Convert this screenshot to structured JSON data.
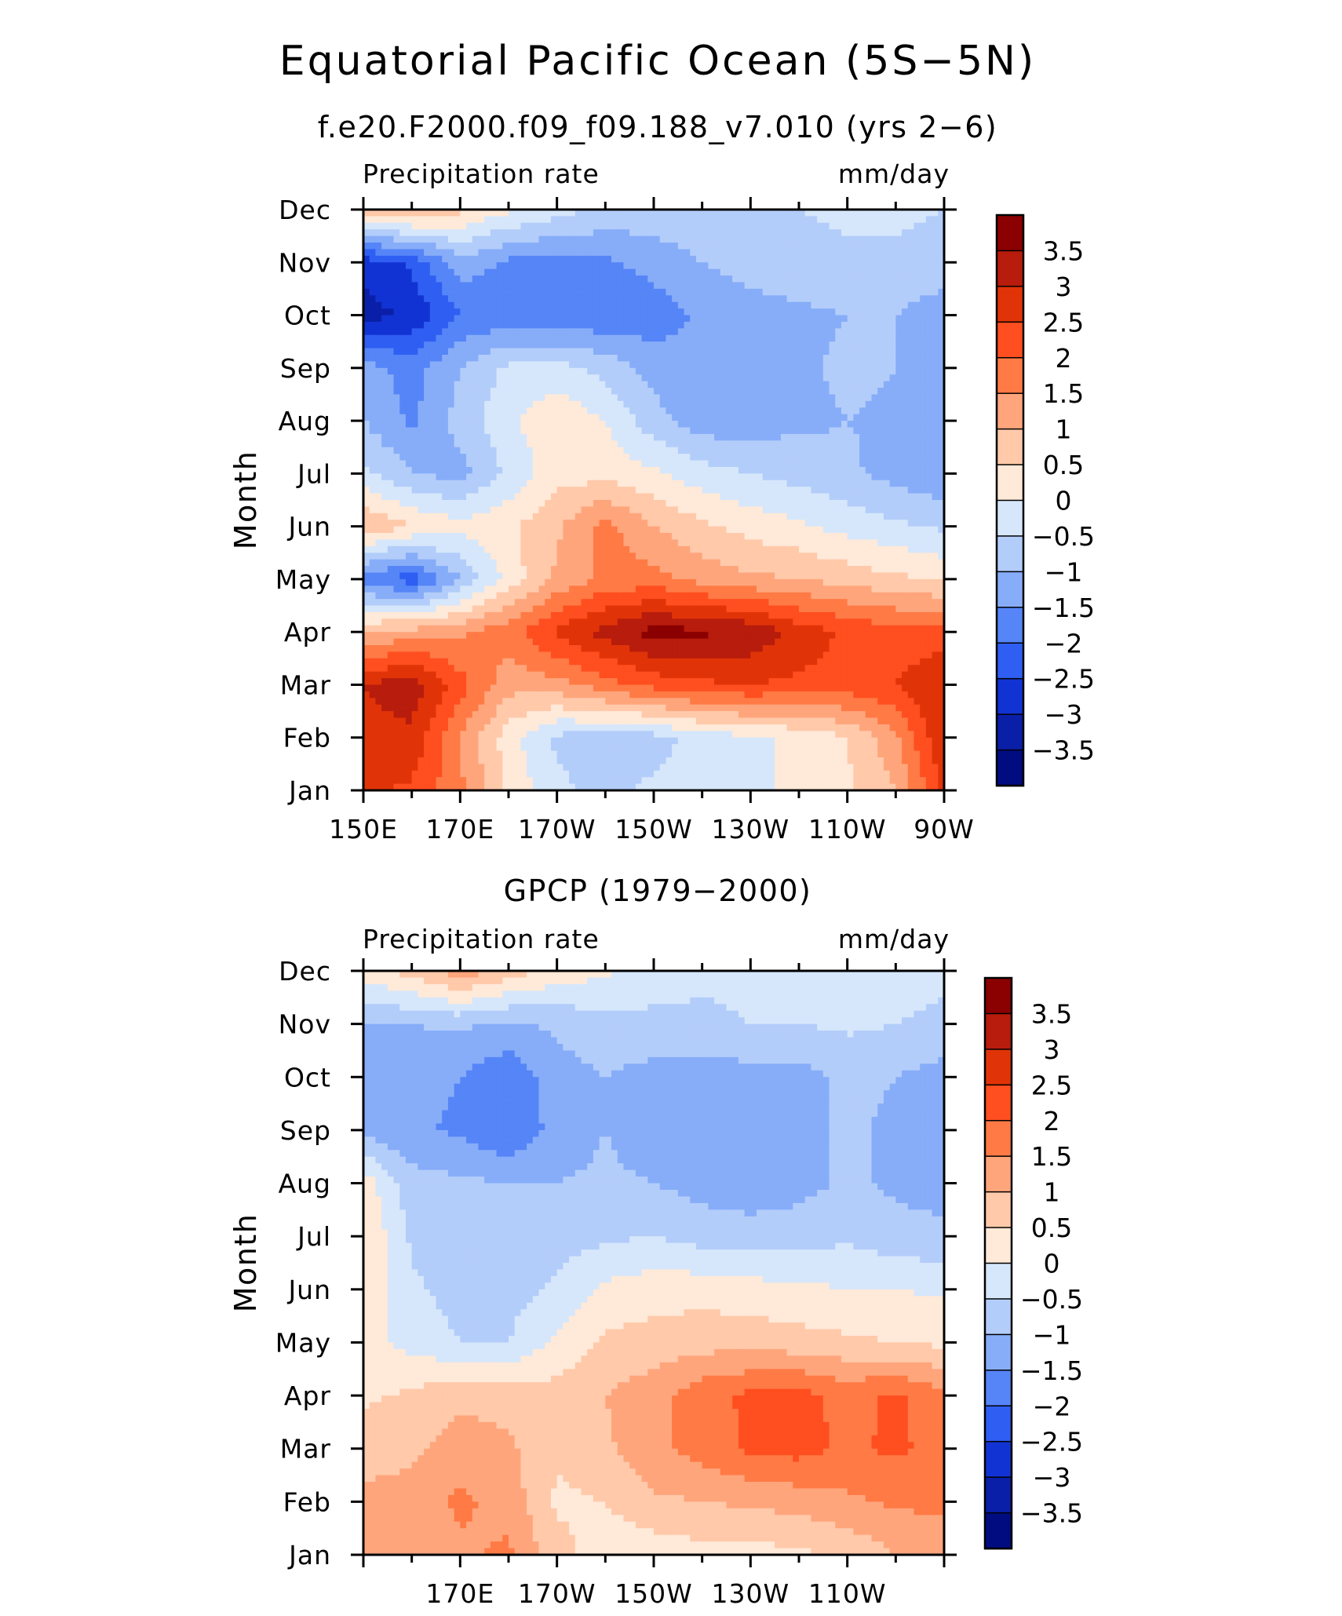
{
  "figure": {
    "title": "Equatorial Pacific Ocean (5S−5N)"
  },
  "color_scale": {
    "levels": [
      "3.5",
      "3",
      "2.5",
      "2",
      "1.5",
      "1",
      "0.5",
      "0",
      "−0.5",
      "−1",
      "−1.5",
      "−2",
      "−2.5",
      "−3",
      "−3.5"
    ],
    "colors": [
      "#8b0000",
      "#b71c0c",
      "#e03408",
      "#ff4e1f",
      "#ff7a45",
      "#ffa57c",
      "#ffc9aa",
      "#ffe9d8",
      "#d6e7fb",
      "#b3cdfa",
      "#87adf9",
      "#5585f7",
      "#2f5ef2",
      "#1233d3",
      "#0a1fa8",
      "#000c80"
    ]
  },
  "chart_data": [
    {
      "type": "heatmap",
      "title": "f.e20.F2000.f09_f09.188_v7.010 (yrs 2−6)",
      "left_string": "Precipitation rate",
      "right_string": "mm/day",
      "ylabel": "Month",
      "x_ticks": [
        150,
        170,
        190,
        210,
        230,
        250,
        270
      ],
      "x_tick_labels": [
        "150E",
        "170E",
        "170W",
        "150W",
        "130W",
        "110W",
        "90W"
      ],
      "xlim": [
        150,
        270
      ],
      "y_tick_labels": [
        "Jan",
        "Feb",
        "Mar",
        "Apr",
        "May",
        "Jun",
        "Jul",
        "Aug",
        "Sep",
        "Oct",
        "Nov",
        "Dec"
      ],
      "x_nodes": [
        150,
        160,
        170,
        180,
        190,
        200,
        210,
        220,
        230,
        240,
        250,
        260,
        270
      ],
      "z": [
        [
          2.6,
          2.4,
          1.6,
          0.4,
          -0.4,
          -0.6,
          -0.4,
          -0.2,
          -0.1,
          0.1,
          0.4,
          1.0,
          2.6
        ],
        [
          2.8,
          2.9,
          1.5,
          0.2,
          -0.6,
          -0.8,
          -0.7,
          -0.3,
          -0.1,
          0.1,
          0.5,
          1.4,
          3.0
        ],
        [
          3.0,
          3.3,
          2.2,
          1.2,
          1.3,
          1.8,
          2.2,
          2.4,
          2.5,
          2.4,
          2.3,
          2.5,
          3.0
        ],
        [
          1.0,
          1.2,
          1.4,
          1.8,
          2.6,
          3.2,
          3.7,
          3.6,
          3.4,
          2.8,
          2.4,
          2.2,
          2.2
        ],
        [
          -1.8,
          -2.3,
          -1.0,
          0.2,
          1.1,
          1.6,
          1.7,
          1.3,
          1.1,
          1.0,
          0.8,
          0.6,
          0.4
        ],
        [
          1.0,
          0.5,
          0.2,
          0.4,
          0.9,
          1.7,
          1.0,
          0.6,
          0.3,
          0.1,
          -0.2,
          -0.4,
          -0.6
        ],
        [
          -0.4,
          -1.0,
          -1.2,
          -0.4,
          0.3,
          0.3,
          0.1,
          -0.3,
          -0.5,
          -0.7,
          -0.9,
          -1.2,
          -1.4
        ],
        [
          -1.0,
          -1.6,
          -0.8,
          -0.1,
          0.4,
          0.0,
          -0.8,
          -1.3,
          -1.3,
          -1.1,
          -1.0,
          -1.1,
          -1.3
        ],
        [
          -1.3,
          -1.7,
          -1.0,
          -0.4,
          -0.3,
          -0.7,
          -1.2,
          -1.4,
          -1.3,
          -1.1,
          -0.9,
          -1.0,
          -1.2
        ],
        [
          -3.2,
          -2.9,
          -2.0,
          -1.8,
          -1.9,
          -1.9,
          -1.8,
          -1.4,
          -1.2,
          -1.1,
          -1.0,
          -1.0,
          -1.3
        ],
        [
          -2.8,
          -2.4,
          -1.2,
          -1.6,
          -1.7,
          -1.6,
          -1.3,
          -1.0,
          -0.8,
          -0.7,
          -0.6,
          -0.6,
          -0.7
        ],
        [
          0.9,
          1.1,
          0.6,
          0.1,
          -0.3,
          -0.6,
          -0.7,
          -0.6,
          -0.5,
          -0.5,
          -0.4,
          -0.4,
          -0.5
        ]
      ],
      "zlim": [
        -4,
        4
      ],
      "grid": false,
      "legend_position": "right"
    },
    {
      "type": "heatmap",
      "title": "GPCP (1979−2000)",
      "left_string": "Precipitation rate",
      "right_string": "mm/day",
      "ylabel": "Month",
      "x_ticks": [
        170,
        190,
        210,
        230,
        250
      ],
      "x_tick_labels": [
        "170E",
        "170W",
        "150W",
        "130W",
        "110W"
      ],
      "xlim": [
        150,
        270
      ],
      "y_tick_labels": [
        "Jan",
        "Feb",
        "Mar",
        "Apr",
        "May",
        "Jun",
        "Jul",
        "Aug",
        "Sep",
        "Oct",
        "Nov",
        "Dec"
      ],
      "x_nodes": [
        150,
        160,
        170,
        180,
        190,
        200,
        210,
        220,
        230,
        240,
        250,
        260,
        270
      ],
      "z": [
        [
          1.2,
          1.3,
          1.4,
          1.6,
          0.7,
          0.2,
          0.2,
          0.3,
          0.3,
          0.4,
          0.6,
          1.0,
          1.2
        ],
        [
          1.1,
          1.2,
          1.6,
          1.3,
          0.4,
          0.5,
          0.9,
          1.0,
          1.1,
          1.2,
          1.4,
          1.6,
          1.6
        ],
        [
          0.8,
          0.9,
          1.2,
          1.1,
          0.6,
          0.9,
          1.4,
          1.7,
          2.1,
          2.2,
          1.9,
          2.1,
          1.8
        ],
        [
          0.4,
          0.6,
          0.9,
          0.8,
          0.7,
          1.0,
          1.3,
          1.8,
          2.1,
          2.2,
          1.8,
          2.1,
          1.6
        ],
        [
          0.2,
          -0.2,
          -0.5,
          -0.5,
          0.1,
          0.6,
          0.7,
          0.8,
          0.8,
          0.7,
          0.6,
          0.5,
          0.4
        ],
        [
          0.5,
          -0.4,
          -0.7,
          -0.7,
          -0.4,
          0.1,
          0.3,
          0.3,
          0.2,
          0.1,
          0.0,
          0.0,
          -0.1
        ],
        [
          0.5,
          -0.6,
          -0.9,
          -0.9,
          -0.7,
          -0.6,
          -0.5,
          -0.7,
          -0.8,
          -0.7,
          -0.6,
          -0.8,
          -0.9
        ],
        [
          0.3,
          -0.8,
          -0.9,
          -1.0,
          -1.0,
          -0.9,
          -1.0,
          -1.2,
          -1.3,
          -1.2,
          -0.9,
          -1.1,
          -1.2
        ],
        [
          -1.2,
          -1.4,
          -1.6,
          -2.0,
          -1.3,
          -1.0,
          -1.3,
          -1.3,
          -1.3,
          -1.2,
          -0.9,
          -1.1,
          -1.3
        ],
        [
          -1.2,
          -1.3,
          -1.5,
          -1.9,
          -1.2,
          -1.0,
          -1.2,
          -1.3,
          -1.2,
          -1.2,
          -0.9,
          -1.0,
          -1.2
        ],
        [
          -1.0,
          -1.0,
          -0.9,
          -1.1,
          -0.9,
          -0.7,
          -0.6,
          -0.6,
          -0.5,
          -0.5,
          -0.4,
          -0.5,
          -0.6
        ],
        [
          0.2,
          0.7,
          1.3,
          0.8,
          0.3,
          0.1,
          -0.3,
          -0.4,
          -0.4,
          -0.3,
          -0.3,
          -0.3,
          -0.4
        ]
      ],
      "zlim": [
        -4,
        4
      ],
      "grid": false,
      "legend_position": "right"
    }
  ]
}
